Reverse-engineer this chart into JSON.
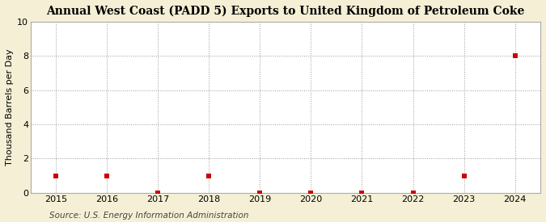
{
  "title": "Annual West Coast (PADD 5) Exports to United Kingdom of Petroleum Coke",
  "ylabel": "Thousand Barrels per Day",
  "source": "Source: U.S. Energy Information Administration",
  "x_values": [
    2015,
    2016,
    2017,
    2018,
    2019,
    2020,
    2021,
    2022,
    2023,
    2024
  ],
  "y_values": [
    1,
    1,
    0,
    1,
    0,
    0,
    0,
    0,
    1,
    8
  ],
  "marker_color": "#cc0000",
  "marker_size": 4,
  "background_color": "#f5efd5",
  "plot_bg_color": "#ffffff",
  "grid_color": "#999999",
  "spine_color": "#aaaaaa",
  "ylim": [
    0,
    10
  ],
  "yticks": [
    0,
    2,
    4,
    6,
    8,
    10
  ],
  "title_fontsize": 10,
  "ylabel_fontsize": 8,
  "source_fontsize": 7.5,
  "tick_fontsize": 8
}
